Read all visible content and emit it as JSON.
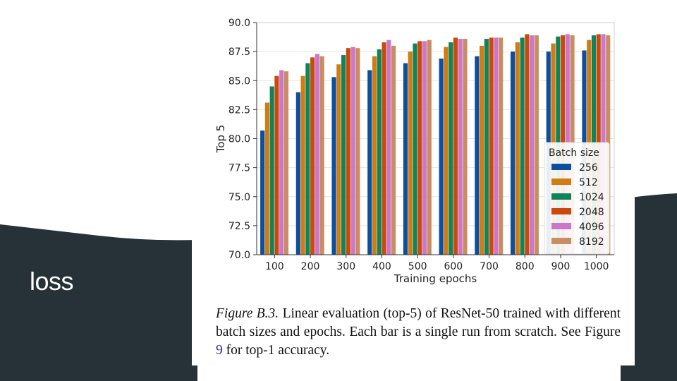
{
  "slide": {
    "title": "loss",
    "colors": {
      "dark": "#263238",
      "light": "#ffffff"
    }
  },
  "caption": {
    "label": "Figure B.3.",
    "text_before_ref": " Linear evaluation (top-5) of ResNet-50 trained with different batch sizes and epochs. Each bar is a single run from scratch. See Figure ",
    "ref": "9",
    "text_after_ref": " for top-1 accuracy."
  },
  "chart_data": {
    "type": "bar",
    "title": "",
    "xlabel": "Training epochs",
    "ylabel": "Top 5",
    "ylim": [
      70.0,
      90.0
    ],
    "yticks": [
      "70.0",
      "72.5",
      "75.0",
      "77.5",
      "80.0",
      "82.5",
      "85.0",
      "87.5",
      "90.0"
    ],
    "grid": true,
    "categories": [
      "100",
      "200",
      "300",
      "400",
      "500",
      "600",
      "700",
      "800",
      "900",
      "1000"
    ],
    "legend": {
      "title": "Batch size",
      "position": "lower-right"
    },
    "series": [
      {
        "name": "256",
        "color": "#0d4f9e",
        "values": [
          80.7,
          84.0,
          85.3,
          85.9,
          86.5,
          86.9,
          87.1,
          87.5,
          87.5,
          87.6
        ]
      },
      {
        "name": "512",
        "color": "#d07c12",
        "values": [
          83.1,
          85.4,
          86.4,
          87.1,
          87.5,
          87.9,
          88.0,
          88.3,
          88.2,
          88.5
        ]
      },
      {
        "name": "1024",
        "color": "#11835a",
        "values": [
          84.5,
          86.5,
          87.2,
          87.7,
          88.2,
          88.3,
          88.6,
          88.7,
          88.8,
          88.9
        ]
      },
      {
        "name": "2048",
        "color": "#c84b0c",
        "values": [
          85.4,
          87.0,
          87.8,
          88.3,
          88.4,
          88.7,
          88.7,
          89.0,
          88.9,
          89.0
        ]
      },
      {
        "name": "4096",
        "color": "#cc77c9",
        "values": [
          85.9,
          87.3,
          87.9,
          88.5,
          88.4,
          88.6,
          88.7,
          88.9,
          89.0,
          89.0
        ]
      },
      {
        "name": "8192",
        "color": "#c88d62",
        "values": [
          85.8,
          87.1,
          87.8,
          88.0,
          88.5,
          88.6,
          88.7,
          88.9,
          88.9,
          88.9
        ]
      }
    ]
  }
}
